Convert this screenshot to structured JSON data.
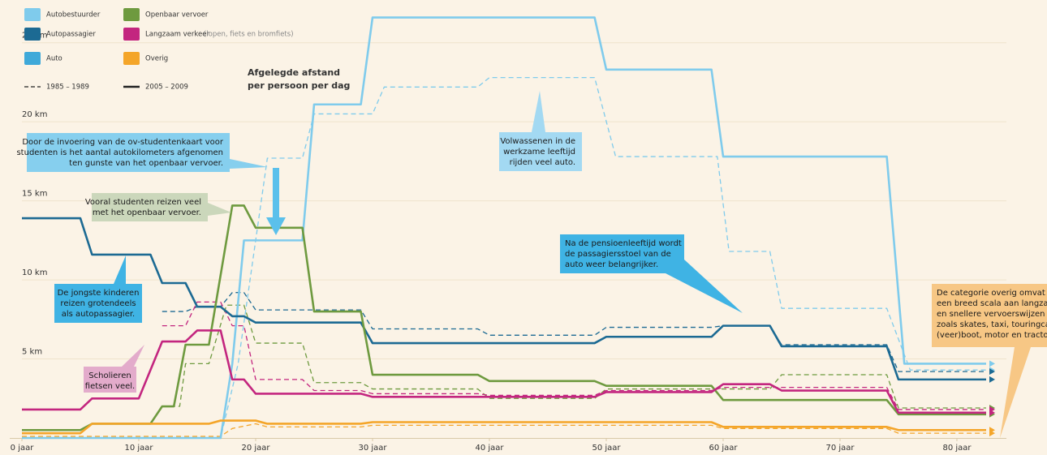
{
  "chart_data": {
    "type": "line",
    "legend": [
      {
        "label": "Autobestuurder",
        "color": "#7fcbec"
      },
      {
        "label": "Autopassagier",
        "color": "#1c6a93"
      },
      {
        "label": "Auto",
        "color": "#3fa9d9"
      },
      {
        "label": "Openbaar vervoer",
        "color": "#6e9a3f"
      },
      {
        "label": "Langzaam verkeer",
        "note": "(lopen, fiets en bromfiets)",
        "color": "#c3267f"
      },
      {
        "label": "Overig",
        "color": "#f4a529"
      }
    ],
    "periods": [
      {
        "label": "1985 – 1989",
        "dashed": true
      },
      {
        "label": "2005 – 2009",
        "dashed": false
      }
    ],
    "xlim": [
      0,
      85
    ],
    "ylim": [
      0,
      27.5
    ],
    "xticks": [
      {
        "value": 0,
        "label": "0 jaar"
      },
      {
        "value": 10,
        "label": "10 jaar"
      },
      {
        "value": 20,
        "label": "20 jaar"
      },
      {
        "value": 30,
        "label": "30 jaar"
      },
      {
        "value": 40,
        "label": "40 jaar"
      },
      {
        "value": 50,
        "label": "50 jaar"
      },
      {
        "value": 60,
        "label": "60 jaar"
      },
      {
        "value": 70,
        "label": "70 jaar"
      },
      {
        "value": 80,
        "label": "80 jaar"
      }
    ],
    "yticks": [
      {
        "value": 5,
        "label": "5 km"
      },
      {
        "value": 10,
        "label": "10 km"
      },
      {
        "value": 15,
        "label": "15 km"
      },
      {
        "value": 20,
        "label": "20 km"
      },
      {
        "value": 25,
        "label": "25 km"
      }
    ],
    "grid": true,
    "series": [
      {
        "name": "Autobestuurder",
        "color": "#7fcbec",
        "dashed": true,
        "x": [
          0,
          17,
          18.5,
          21,
          24,
          25,
          30,
          31,
          39,
          40,
          49,
          50.8,
          59.5,
          60.5,
          64,
          65,
          74,
          76,
          82.5
        ],
        "values": [
          0,
          0,
          4.7,
          17.7,
          17.7,
          20.5,
          20.5,
          22.2,
          22.2,
          22.8,
          22.8,
          17.8,
          17.8,
          11.8,
          11.8,
          8.2,
          8.2,
          4.3,
          4.3
        ]
      },
      {
        "name": "Autopassagier",
        "color": "#1c6a93",
        "dashed": true,
        "x": [
          12,
          14,
          15,
          17,
          18,
          19,
          20,
          29,
          30,
          39,
          40,
          49,
          50,
          59,
          60,
          64,
          65,
          74,
          75,
          82.5
        ],
        "values": [
          8.0,
          8.0,
          8.3,
          8.3,
          9.2,
          9.2,
          8.1,
          8.1,
          6.9,
          6.9,
          6.5,
          6.5,
          7.0,
          7.0,
          7.1,
          7.1,
          5.9,
          5.9,
          4.2,
          4.2
        ]
      },
      {
        "name": "Openbaar vervoer",
        "color": "#6e9a3f",
        "dashed": true,
        "x": [
          12,
          13.5,
          14,
          16,
          17.5,
          19,
          20,
          24,
          25,
          29,
          30,
          39,
          40,
          49,
          50,
          64,
          65,
          74,
          75,
          82.5
        ],
        "values": [
          2.0,
          2.0,
          4.7,
          4.7,
          8.4,
          8.4,
          6.0,
          6.0,
          3.5,
          3.5,
          3.1,
          3.1,
          2.5,
          2.5,
          3.1,
          3.1,
          4.0,
          4.0,
          1.9,
          1.9
        ]
      },
      {
        "name": "Langzaam verkeer",
        "color": "#c3267f",
        "dashed": true,
        "x": [
          12,
          14,
          15,
          17,
          18,
          19,
          20,
          24,
          25,
          29,
          30,
          39,
          40,
          49,
          50,
          59,
          60,
          74,
          75,
          82.5
        ],
        "values": [
          7.1,
          7.1,
          8.6,
          8.6,
          7.1,
          7.1,
          3.7,
          3.7,
          3.0,
          3.0,
          2.8,
          2.8,
          2.7,
          2.7,
          3.0,
          3.0,
          3.2,
          3.2,
          1.8,
          1.8
        ]
      },
      {
        "name": "Overig",
        "color": "#f4a529",
        "dashed": true,
        "x": [
          0,
          17,
          18,
          20,
          21,
          29,
          30,
          59,
          60,
          74,
          75,
          82.5
        ],
        "values": [
          0.1,
          0.1,
          0.6,
          0.9,
          0.7,
          0.7,
          0.8,
          0.8,
          0.6,
          0.6,
          0.3,
          0.3
        ]
      },
      {
        "name": "Autobestuurder",
        "color": "#7fcbec",
        "dashed": false,
        "x": [
          0,
          17,
          18,
          19,
          24,
          25,
          29,
          30,
          49,
          50,
          59,
          60,
          74,
          75.5,
          82.5
        ],
        "values": [
          0,
          0,
          4.7,
          12.5,
          12.5,
          21.1,
          21.1,
          26.6,
          26.6,
          23.3,
          23.3,
          17.8,
          17.8,
          4.7,
          4.7
        ]
      },
      {
        "name": "Autopassagier",
        "color": "#1c6a93",
        "dashed": false,
        "x": [
          0,
          5,
          6,
          11,
          12,
          14,
          15,
          17,
          18,
          19,
          20,
          29,
          30,
          49,
          50,
          59,
          60,
          64,
          65,
          74,
          75,
          82.5
        ],
        "values": [
          13.9,
          13.9,
          11.6,
          11.6,
          9.8,
          9.8,
          8.3,
          8.3,
          7.7,
          7.7,
          7.3,
          7.3,
          6.0,
          6.0,
          6.4,
          6.4,
          7.1,
          7.1,
          5.8,
          5.8,
          3.7,
          3.7
        ]
      },
      {
        "name": "Openbaar vervoer",
        "color": "#6e9a3f",
        "dashed": false,
        "x": [
          0,
          5,
          6,
          11,
          12,
          13,
          14,
          16,
          18,
          19,
          20,
          24,
          25,
          29,
          30,
          39,
          40,
          49,
          50,
          59,
          60,
          74,
          75,
          82.5
        ],
        "values": [
          0.5,
          0.5,
          0.9,
          0.9,
          2.0,
          2.0,
          5.9,
          5.9,
          14.7,
          14.7,
          13.3,
          13.3,
          8.0,
          8.0,
          4.0,
          4.0,
          3.6,
          3.6,
          3.3,
          3.3,
          2.4,
          2.4,
          1.5,
          1.5
        ]
      },
      {
        "name": "Langzaam verkeer",
        "color": "#c3267f",
        "dashed": false,
        "x": [
          0,
          5,
          6,
          10,
          12,
          14,
          15,
          17,
          18,
          19,
          20,
          29,
          30,
          49,
          50,
          59,
          60,
          64,
          65,
          74,
          75,
          82.5
        ],
        "values": [
          1.8,
          1.8,
          2.5,
          2.5,
          6.1,
          6.1,
          6.8,
          6.8,
          3.7,
          3.7,
          2.8,
          2.8,
          2.6,
          2.6,
          2.9,
          2.9,
          3.4,
          3.4,
          3.0,
          3.0,
          1.6,
          1.6
        ]
      },
      {
        "name": "Overig",
        "color": "#f4a529",
        "dashed": false,
        "x": [
          0,
          5,
          6,
          16,
          17,
          20,
          21,
          29,
          30,
          59,
          60,
          74,
          75,
          82.5
        ],
        "values": [
          0.3,
          0.3,
          0.9,
          0.9,
          1.1,
          1.1,
          0.9,
          0.9,
          1.0,
          1.0,
          0.7,
          0.7,
          0.5,
          0.5
        ]
      }
    ],
    "annotations": [
      {
        "lines": [
          "Afgelegde afstand",
          "per persoon per dag"
        ]
      },
      {
        "lines": [
          "Door de invoering van de ov-studentenkaart voor",
          "studenten is het aantal autokilometers afgenomen",
          "ten gunste van het openbaar vervoer."
        ],
        "color": "#86cfee"
      },
      {
        "lines": [
          "Vooral studenten reizen veel",
          "met het openbaar vervoer."
        ],
        "color": "#cbd7bb"
      },
      {
        "lines": [
          "De jongste kinderen",
          "reizen grotendeels",
          "als autopassagier."
        ],
        "color": "#3fb3e4"
      },
      {
        "lines": [
          "Scholieren",
          "fietsen veel."
        ],
        "color": "#e3abcb"
      },
      {
        "lines": [
          "Volwassenen in de",
          "werkzame leeftijd",
          "rijden veel auto."
        ],
        "color": "#a3d9f2"
      },
      {
        "lines": [
          "Na de pensioenleeftijd wordt",
          "de passagiersstoel van de",
          "auto weer belangrijker."
        ],
        "color": "#3fb3e4"
      },
      {
        "lines": [
          "De categorie overig omvat",
          "een breed scala aan langzame",
          "en snellere vervoerswijzen",
          "zoals skates, taxi, touringcar,",
          "(veer)boot, motor en tractor."
        ],
        "color": "#f7c785"
      }
    ]
  }
}
